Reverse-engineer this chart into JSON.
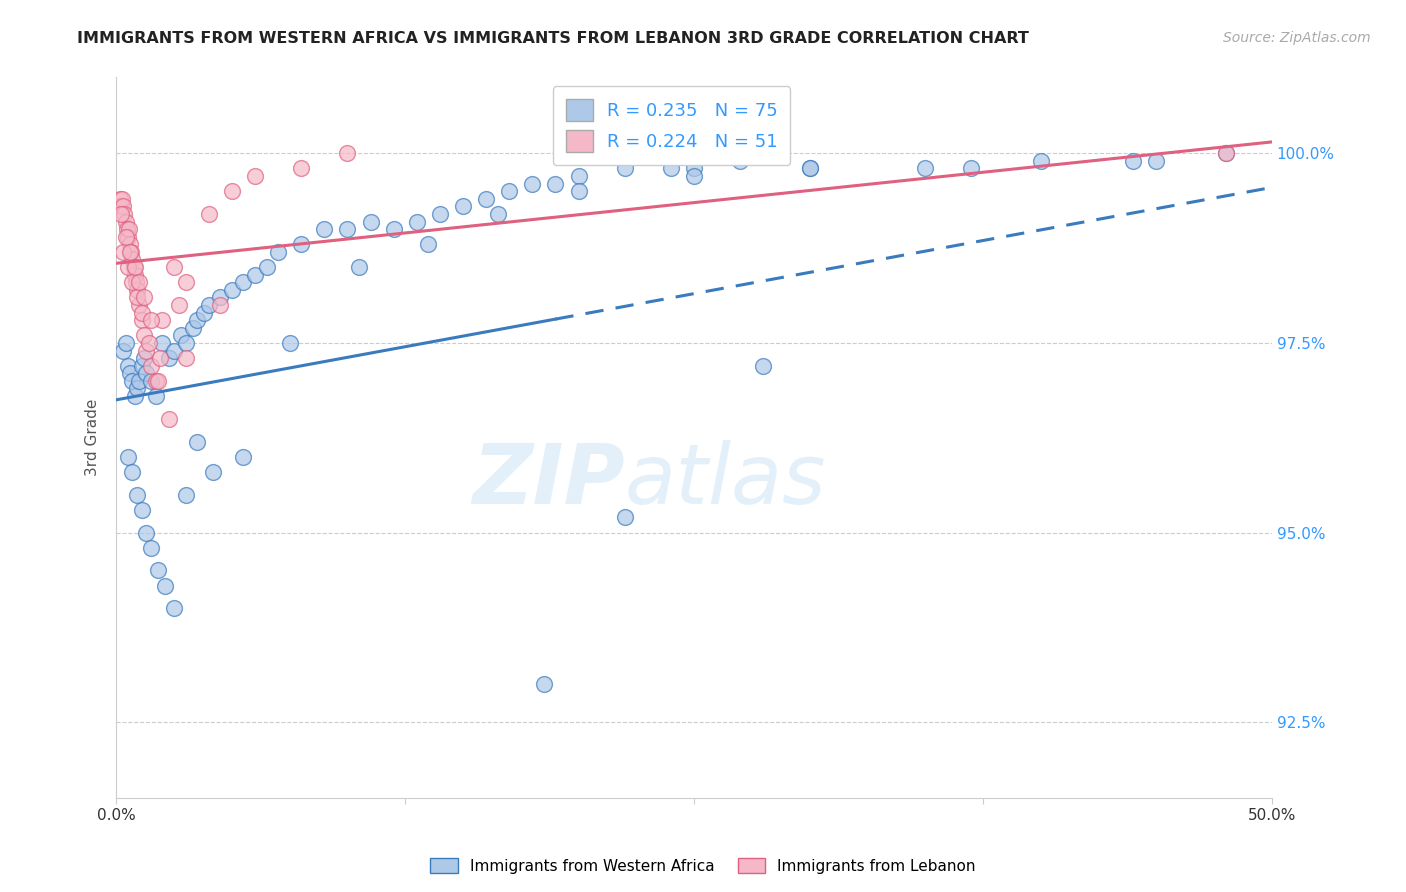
{
  "title": "IMMIGRANTS FROM WESTERN AFRICA VS IMMIGRANTS FROM LEBANON 3RD GRADE CORRELATION CHART",
  "source": "Source: ZipAtlas.com",
  "ylabel": "3rd Grade",
  "legend_label_blue": "Immigrants from Western Africa",
  "legend_label_pink": "Immigrants from Lebanon",
  "r_blue": 0.235,
  "n_blue": 75,
  "r_pink": 0.224,
  "n_pink": 51,
  "xmin": 0.0,
  "xmax": 50.0,
  "ymin": 91.5,
  "ymax": 101.0,
  "yticks": [
    92.5,
    95.0,
    97.5,
    100.0
  ],
  "xticks": [
    0.0,
    12.5,
    25.0,
    37.5,
    50.0
  ],
  "xtick_labels": [
    "0.0%",
    "",
    "",
    "",
    "50.0%"
  ],
  "ytick_labels": [
    "92.5%",
    "95.0%",
    "97.5%",
    "100.0%"
  ],
  "color_blue": "#aec8e8",
  "color_pink": "#f4b8c8",
  "line_blue": "#3a7bbf",
  "line_pink": "#e06080",
  "watermark_zip": "ZIP",
  "watermark_atlas": "atlas",
  "blue_line_x0": 0.0,
  "blue_line_y0": 96.75,
  "blue_line_x1": 50.0,
  "blue_line_y1": 99.55,
  "blue_solid_end_x": 19.0,
  "pink_line_x0": 0.0,
  "pink_line_y0": 98.55,
  "pink_line_x1": 50.0,
  "pink_line_y1": 100.15,
  "blue_x": [
    0.3,
    0.4,
    0.5,
    0.6,
    0.7,
    0.8,
    0.9,
    1.0,
    1.1,
    1.2,
    1.3,
    1.5,
    1.7,
    2.0,
    2.3,
    2.5,
    2.8,
    3.0,
    3.3,
    3.5,
    3.8,
    4.0,
    4.5,
    5.0,
    5.5,
    6.0,
    6.5,
    7.0,
    8.0,
    9.0,
    10.0,
    11.0,
    12.0,
    13.0,
    14.0,
    15.0,
    16.0,
    17.0,
    18.0,
    19.0,
    20.0,
    22.0,
    24.0,
    25.0,
    27.0,
    30.0,
    35.0,
    40.0,
    45.0,
    48.0,
    0.5,
    0.7,
    0.9,
    1.1,
    1.3,
    1.5,
    1.8,
    2.1,
    2.5,
    3.0,
    3.5,
    4.2,
    5.5,
    7.5,
    10.5,
    13.5,
    16.5,
    20.0,
    25.0,
    30.0,
    37.0,
    44.0,
    18.5,
    22.0,
    28.0
  ],
  "blue_y": [
    97.4,
    97.5,
    97.2,
    97.1,
    97.0,
    96.8,
    96.9,
    97.0,
    97.2,
    97.3,
    97.1,
    97.0,
    96.8,
    97.5,
    97.3,
    97.4,
    97.6,
    97.5,
    97.7,
    97.8,
    97.9,
    98.0,
    98.1,
    98.2,
    98.3,
    98.4,
    98.5,
    98.7,
    98.8,
    99.0,
    99.0,
    99.1,
    99.0,
    99.1,
    99.2,
    99.3,
    99.4,
    99.5,
    99.6,
    99.6,
    99.7,
    99.8,
    99.8,
    99.8,
    99.9,
    99.8,
    99.8,
    99.9,
    99.9,
    100.0,
    96.0,
    95.8,
    95.5,
    95.3,
    95.0,
    94.8,
    94.5,
    94.3,
    94.0,
    95.5,
    96.2,
    95.8,
    96.0,
    97.5,
    98.5,
    98.8,
    99.2,
    99.5,
    99.7,
    99.8,
    99.8,
    99.9,
    93.0,
    95.2,
    97.2
  ],
  "pink_x": [
    0.1,
    0.15,
    0.2,
    0.25,
    0.3,
    0.35,
    0.4,
    0.45,
    0.5,
    0.55,
    0.6,
    0.65,
    0.7,
    0.75,
    0.8,
    0.85,
    0.9,
    1.0,
    1.1,
    1.2,
    1.3,
    1.5,
    1.7,
    2.0,
    2.5,
    3.0,
    4.0,
    5.0,
    6.0,
    8.0,
    10.0,
    0.3,
    0.5,
    0.7,
    0.9,
    1.1,
    1.4,
    1.8,
    2.3,
    3.0,
    4.5,
    0.2,
    0.4,
    0.6,
    0.8,
    1.0,
    1.2,
    1.5,
    1.9,
    2.7,
    48.0
  ],
  "pink_y": [
    99.3,
    99.4,
    99.3,
    99.4,
    99.3,
    99.2,
    99.1,
    99.0,
    98.9,
    99.0,
    98.8,
    98.7,
    98.6,
    98.5,
    98.4,
    98.3,
    98.2,
    98.0,
    97.8,
    97.6,
    97.4,
    97.2,
    97.0,
    97.8,
    98.5,
    98.3,
    99.2,
    99.5,
    99.7,
    99.8,
    100.0,
    98.7,
    98.5,
    98.3,
    98.1,
    97.9,
    97.5,
    97.0,
    96.5,
    97.3,
    98.0,
    99.2,
    98.9,
    98.7,
    98.5,
    98.3,
    98.1,
    97.8,
    97.3,
    98.0,
    100.0
  ]
}
